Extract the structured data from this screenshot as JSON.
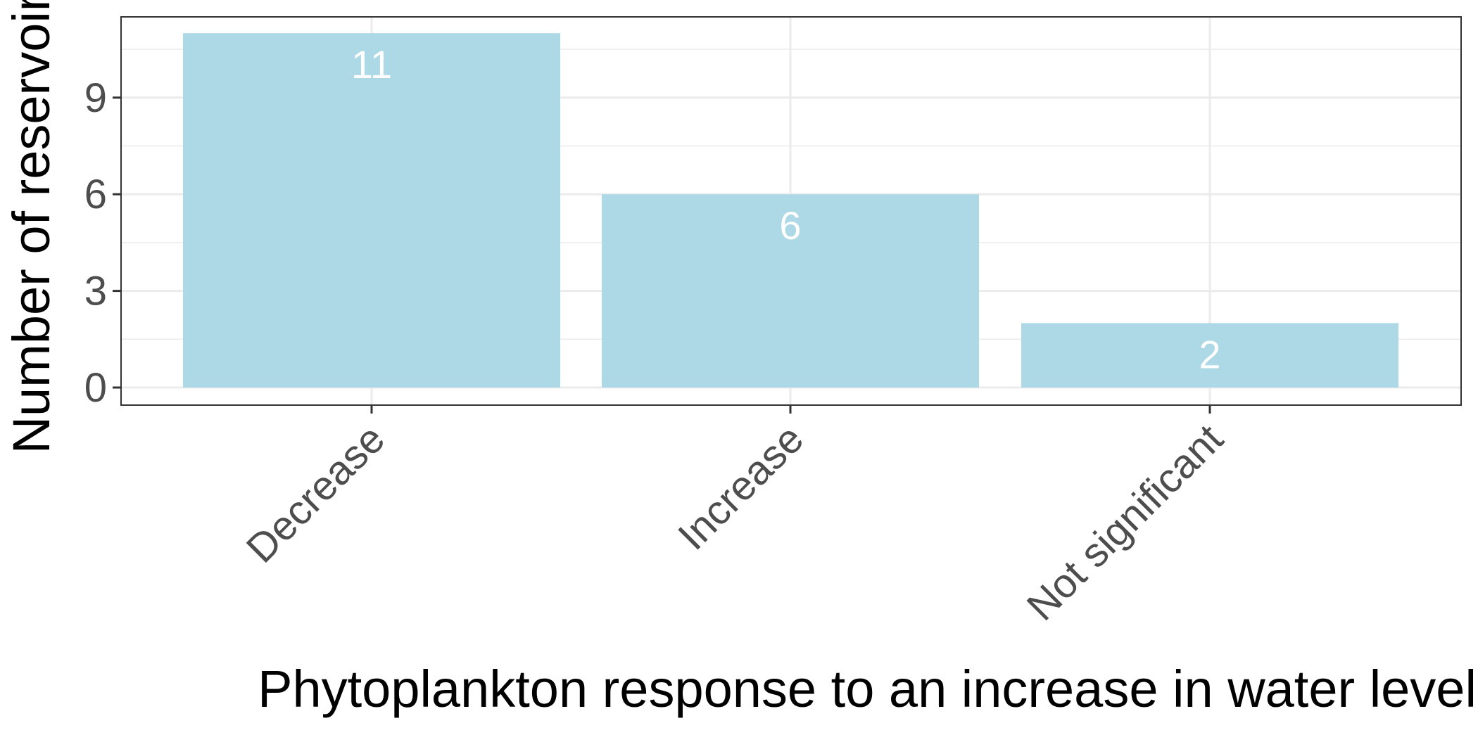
{
  "chart_data": {
    "type": "bar",
    "title": "",
    "xlabel": "Phytoplankton response to an increase in water level",
    "ylabel": "Number of reservoirs",
    "categories": [
      "Decrease",
      "Increase",
      "Not significant"
    ],
    "values": [
      11,
      6,
      2
    ],
    "data_labels": [
      "11",
      "6",
      "2"
    ],
    "yticks": [
      0,
      3,
      6,
      9
    ],
    "ylim": [
      0,
      11.5
    ],
    "grid": true,
    "legend": "none",
    "bar_color": "#add8e6",
    "label_color": "#ffffff"
  }
}
